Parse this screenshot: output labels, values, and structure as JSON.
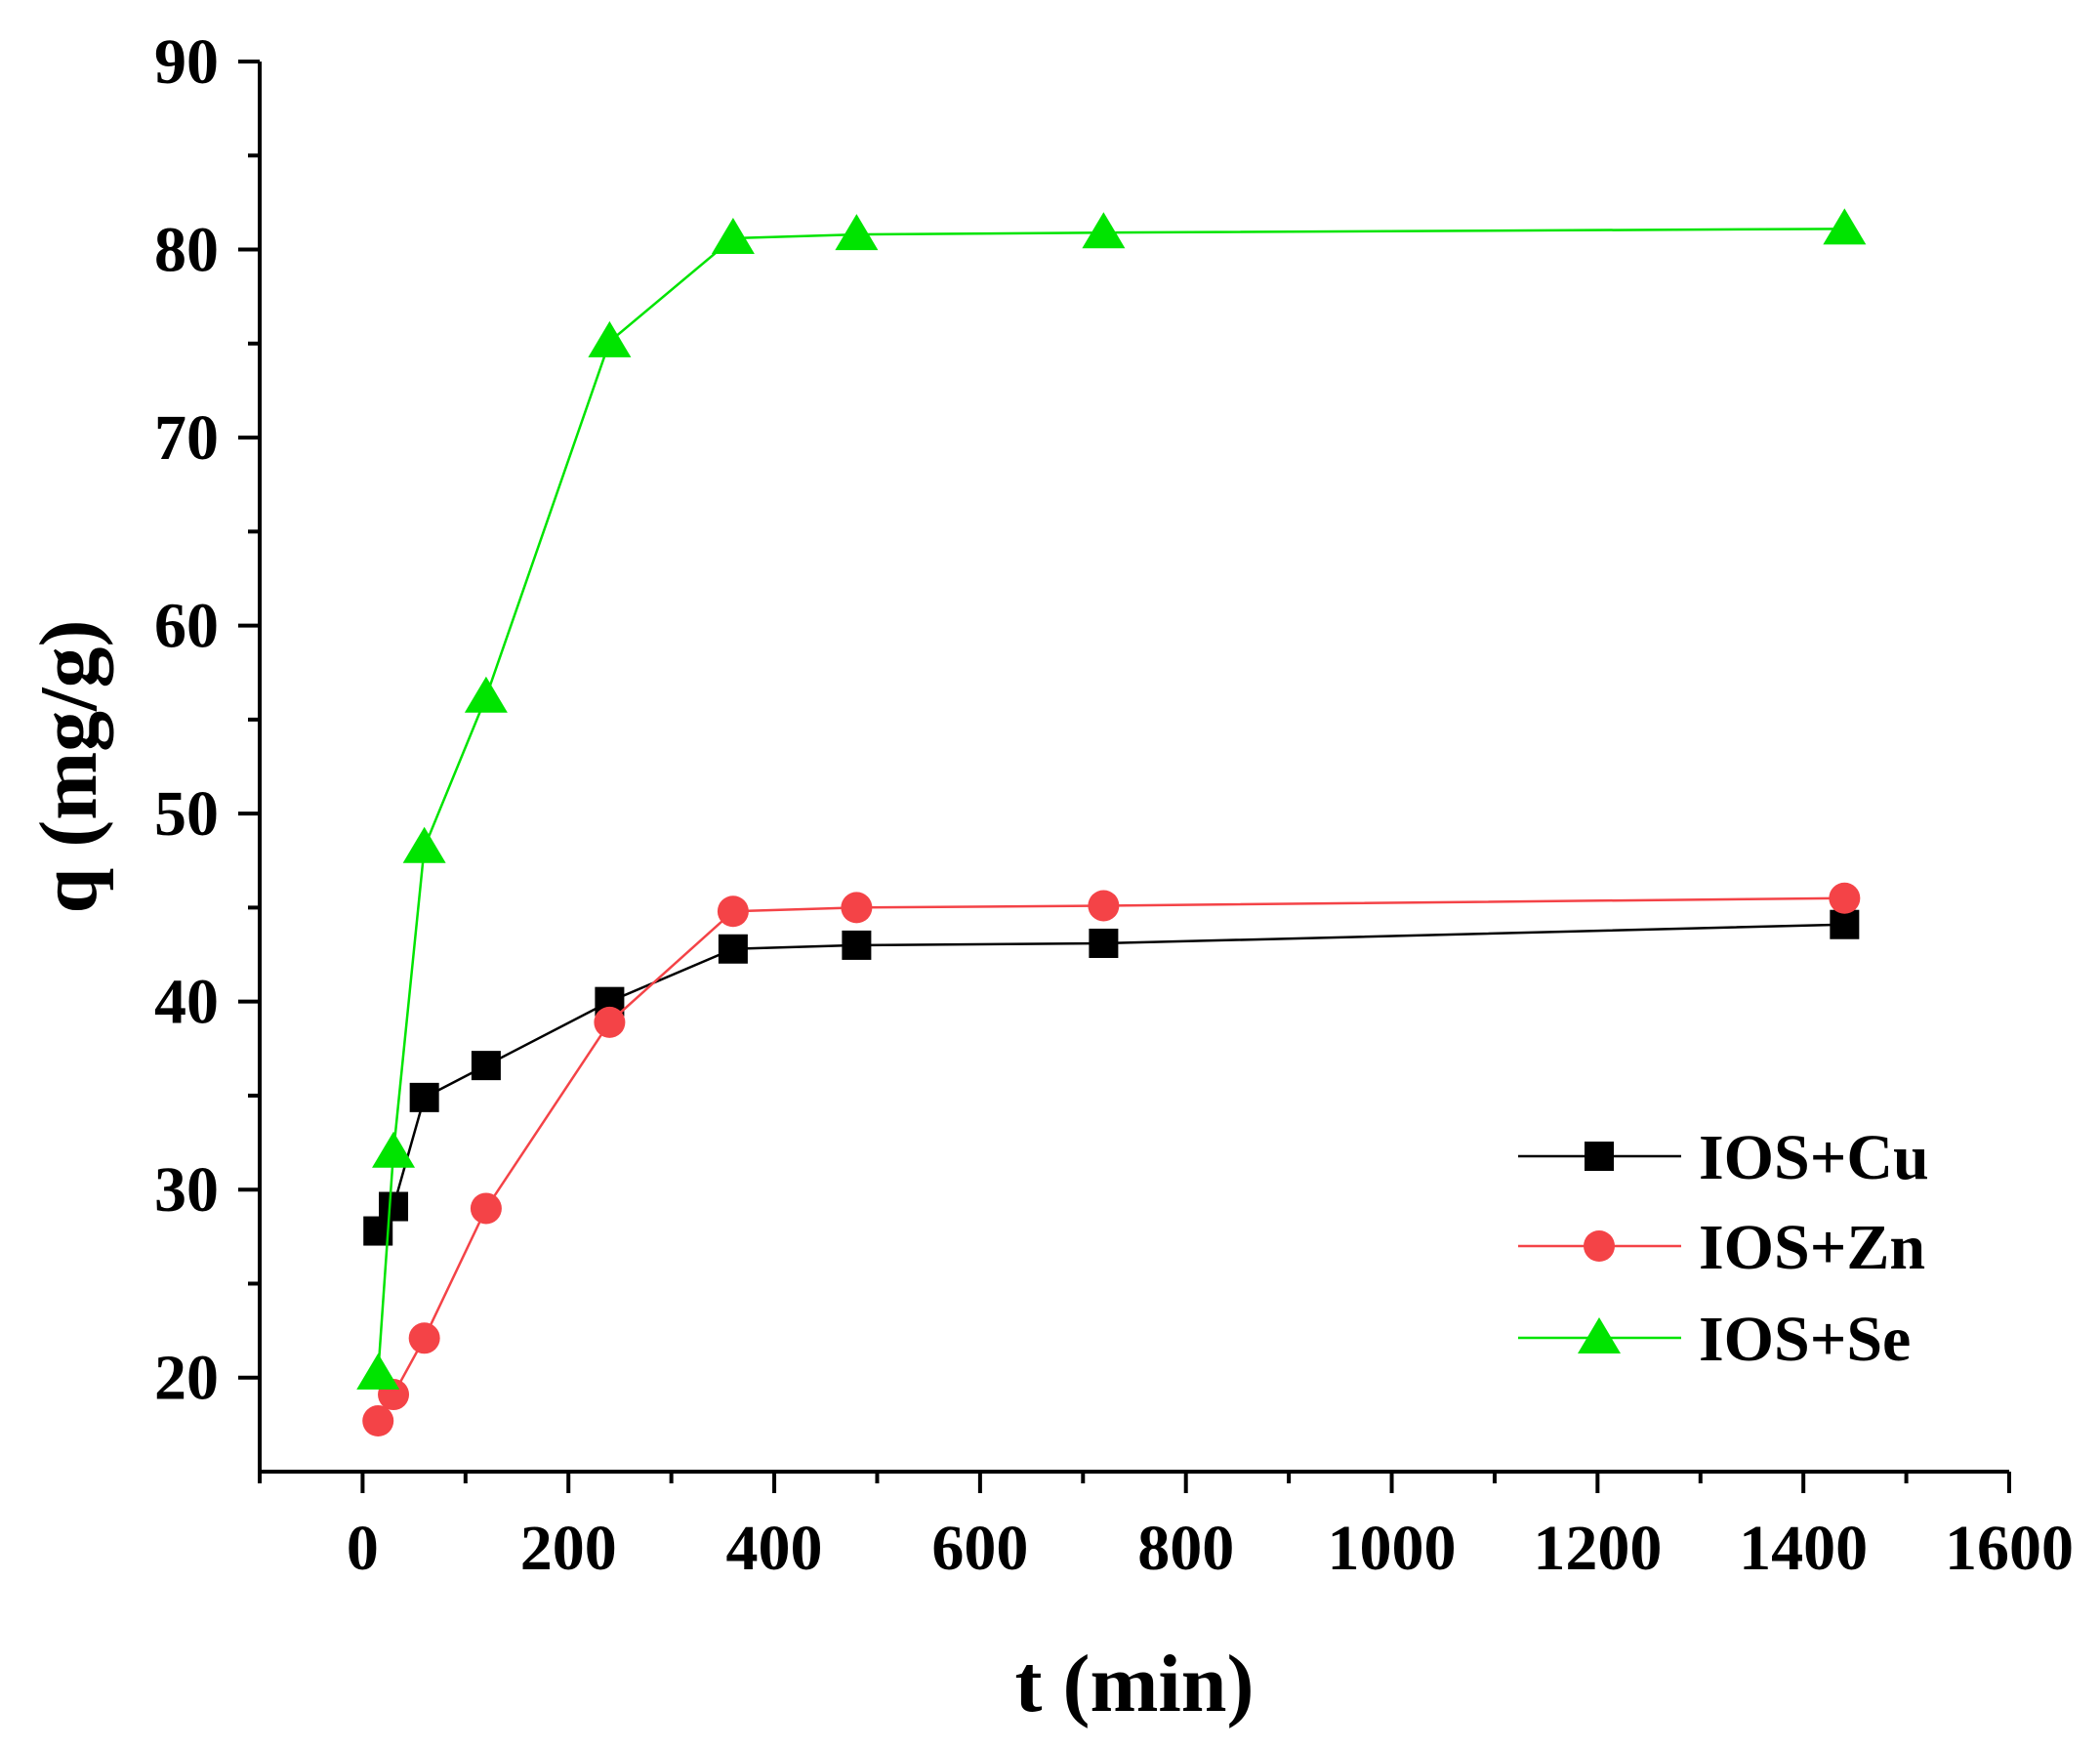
{
  "chart_data": {
    "type": "line",
    "title": "",
    "xlabel": "t (min)",
    "ylabel": "q (mg/g)",
    "xlim": [
      -100,
      1600
    ],
    "ylim": [
      15,
      90
    ],
    "xticks": [
      0,
      200,
      400,
      600,
      800,
      1000,
      1200,
      1400,
      1600
    ],
    "yticks": [
      20,
      30,
      40,
      50,
      60,
      70,
      80,
      90
    ],
    "grid": false,
    "legend_position": "bottom-right",
    "series": [
      {
        "name": "IOS+Cu",
        "color": "#000000",
        "marker": "square",
        "x": [
          15,
          30,
          60,
          120,
          240,
          360,
          480,
          720,
          1440
        ],
        "y": [
          27.8,
          29.1,
          34.9,
          36.6,
          40.0,
          42.8,
          43.0,
          43.1,
          44.1
        ]
      },
      {
        "name": "IOS+Zn",
        "color": "#f44347",
        "marker": "circle",
        "x": [
          15,
          30,
          60,
          120,
          240,
          360,
          480,
          720,
          1440
        ],
        "y": [
          17.7,
          19.1,
          22.1,
          29.0,
          38.9,
          44.8,
          45.0,
          45.1,
          45.5
        ]
      },
      {
        "name": "IOS+Se",
        "color": "#00e400",
        "marker": "triangle",
        "x": [
          15,
          30,
          60,
          120,
          240,
          360,
          480,
          720,
          1440
        ],
        "y": [
          20.2,
          32.0,
          48.2,
          56.2,
          75.1,
          80.6,
          80.8,
          80.9,
          81.1
        ]
      }
    ]
  }
}
